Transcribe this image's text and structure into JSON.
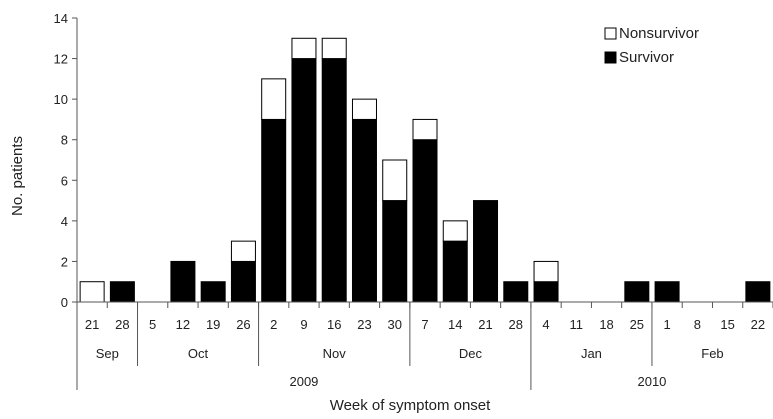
{
  "chart_data": {
    "type": "bar",
    "stacked": true,
    "xlabel": "Week of symptom onset",
    "ylabel": "No. patients",
    "ylim": [
      0,
      14
    ],
    "yticks": [
      0,
      2,
      4,
      6,
      8,
      10,
      12,
      14
    ],
    "grid": false,
    "legend_position": "top-right",
    "categories": [
      "21",
      "28",
      "5",
      "12",
      "19",
      "26",
      "2",
      "9",
      "16",
      "23",
      "30",
      "7",
      "14",
      "21",
      "28",
      "4",
      "11",
      "18",
      "25",
      "1",
      "8",
      "15",
      "22"
    ],
    "series": [
      {
        "name": "Survivor",
        "color": "#000000",
        "values": [
          0,
          1,
          0,
          2,
          1,
          2,
          9,
          12,
          12,
          9,
          5,
          8,
          3,
          5,
          1,
          1,
          0,
          0,
          1,
          1,
          0,
          0,
          1
        ]
      },
      {
        "name": "Nonsurvivor",
        "color": "#ffffff",
        "values": [
          1,
          0,
          0,
          0,
          0,
          1,
          2,
          1,
          1,
          1,
          2,
          1,
          1,
          0,
          0,
          1,
          0,
          0,
          0,
          0,
          0,
          0,
          0
        ]
      }
    ],
    "months": [
      {
        "label": "Sep",
        "start": 0,
        "end": 1
      },
      {
        "label": "Oct",
        "start": 2,
        "end": 5
      },
      {
        "label": "Nov",
        "start": 6,
        "end": 10
      },
      {
        "label": "Dec",
        "start": 11,
        "end": 14
      },
      {
        "label": "Jan",
        "start": 15,
        "end": 18
      },
      {
        "label": "Feb",
        "start": 19,
        "end": 22
      }
    ],
    "years": [
      {
        "label": "2009",
        "start": 0,
        "end": 14
      },
      {
        "label": "2010",
        "start": 15,
        "end": 22
      }
    ],
    "legend": [
      {
        "name": "Nonsurvivor",
        "color": "#ffffff"
      },
      {
        "name": "Survivor",
        "color": "#000000"
      }
    ]
  }
}
